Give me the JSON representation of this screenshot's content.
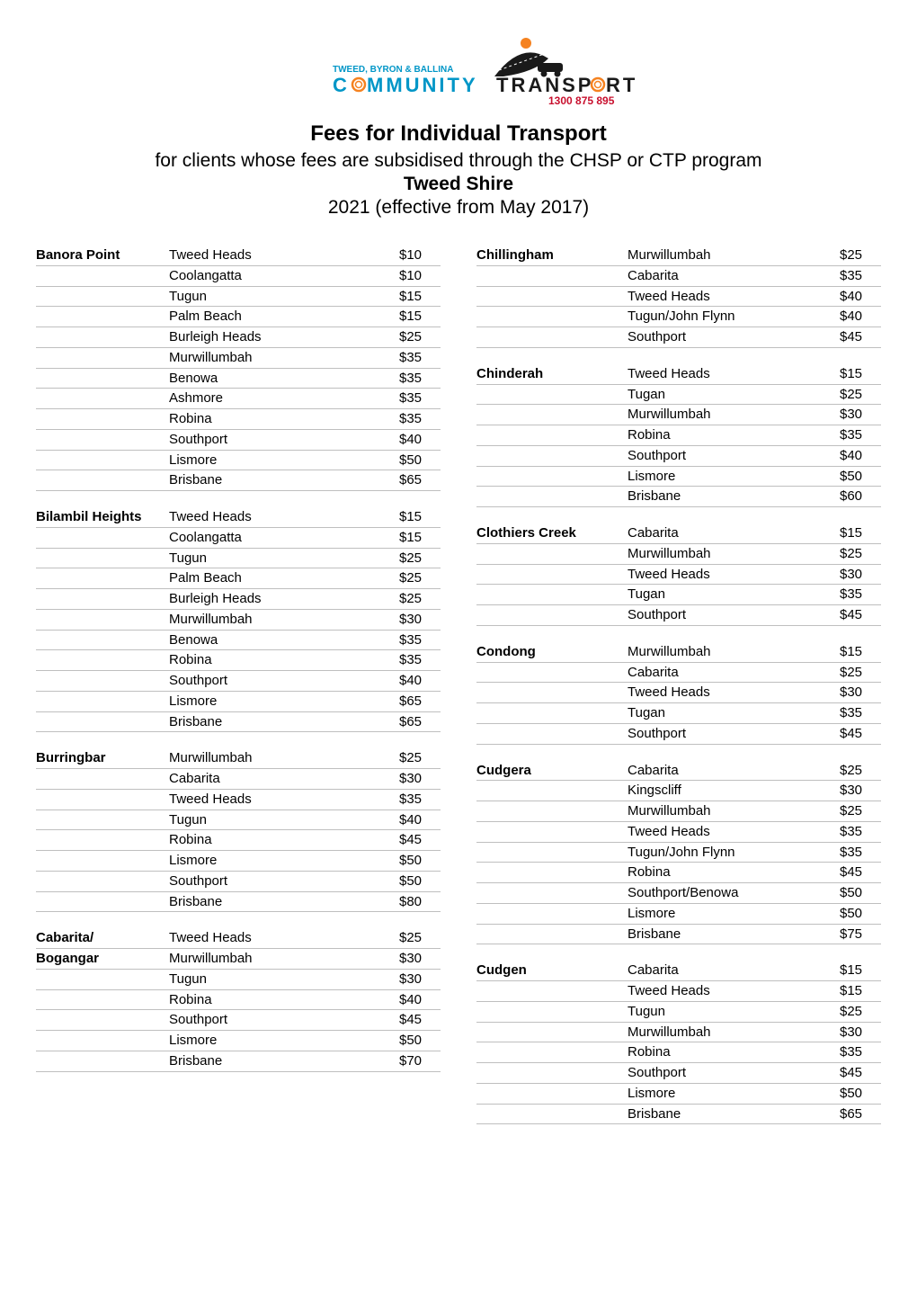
{
  "logo": {
    "line1_prefix": "TWEED, BYRON & BALLINA",
    "line2_text": "COMMUNITY TRANSPORT",
    "phone": "1300 875 895",
    "accent_color": "#0096c7",
    "orange_color": "#f58220",
    "red_color": "#c8102e"
  },
  "header": {
    "main_title": "Fees for Individual Transport",
    "subtitle": "for clients whose fees are subsidised through the CHSP or CTP program",
    "shire": "Tweed Shire",
    "date_line": "2021 (effective from May 2017)"
  },
  "styling": {
    "background": "#ffffff",
    "text_color": "#000000",
    "border_color": "#bfbfbf",
    "body_fontsize": 15,
    "title_fontsize": 24,
    "subtitle_fontsize": 21
  },
  "left_column": [
    {
      "origin": "Banora Point",
      "rows": [
        {
          "dest": "Tweed Heads",
          "fare": "$10"
        },
        {
          "dest": "Coolangatta",
          "fare": "$10"
        },
        {
          "dest": "Tugun",
          "fare": "$15"
        },
        {
          "dest": "Palm Beach",
          "fare": "$15"
        },
        {
          "dest": "Burleigh Heads",
          "fare": "$25"
        },
        {
          "dest": "Murwillumbah",
          "fare": "$35"
        },
        {
          "dest": "Benowa",
          "fare": "$35"
        },
        {
          "dest": "Ashmore",
          "fare": "$35"
        },
        {
          "dest": "Robina",
          "fare": "$35"
        },
        {
          "dest": "Southport",
          "fare": "$40"
        },
        {
          "dest": "Lismore",
          "fare": "$50"
        },
        {
          "dest": "Brisbane",
          "fare": "$65"
        }
      ]
    },
    {
      "origin": "Bilambil Heights",
      "rows": [
        {
          "dest": "Tweed Heads",
          "fare": "$15"
        },
        {
          "dest": "Coolangatta",
          "fare": "$15"
        },
        {
          "dest": "Tugun",
          "fare": "$25"
        },
        {
          "dest": "Palm Beach",
          "fare": "$25"
        },
        {
          "dest": "Burleigh Heads",
          "fare": "$25"
        },
        {
          "dest": "Murwillumbah",
          "fare": "$30"
        },
        {
          "dest": "Benowa",
          "fare": "$35"
        },
        {
          "dest": "Robina",
          "fare": "$35"
        },
        {
          "dest": "Southport",
          "fare": "$40"
        },
        {
          "dest": "Lismore",
          "fare": "$65"
        },
        {
          "dest": "Brisbane",
          "fare": "$65"
        }
      ]
    },
    {
      "origin": "Burringbar",
      "rows": [
        {
          "dest": "Murwillumbah",
          "fare": "$25"
        },
        {
          "dest": "Cabarita",
          "fare": "$30"
        },
        {
          "dest": "Tweed Heads",
          "fare": "$35"
        },
        {
          "dest": "Tugun",
          "fare": "$40"
        },
        {
          "dest": "Robina",
          "fare": "$45"
        },
        {
          "dest": "Lismore",
          "fare": "$50"
        },
        {
          "dest": "Southport",
          "fare": "$50"
        },
        {
          "dest": "Brisbane",
          "fare": "$80"
        }
      ]
    },
    {
      "origin": "Cabarita/",
      "origin2": "Bogangar",
      "rows": [
        {
          "dest": "Tweed Heads",
          "fare": "$25"
        },
        {
          "dest": "Murwillumbah",
          "fare": "$30"
        },
        {
          "dest": "Tugun",
          "fare": "$30"
        },
        {
          "dest": "Robina",
          "fare": "$40"
        },
        {
          "dest": "Southport",
          "fare": "$45"
        },
        {
          "dest": "Lismore",
          "fare": "$50"
        },
        {
          "dest": "Brisbane",
          "fare": "$70"
        }
      ]
    }
  ],
  "right_column": [
    {
      "origin": "Chillingham",
      "rows": [
        {
          "dest": "Murwillumbah",
          "fare": "$25"
        },
        {
          "dest": "Cabarita",
          "fare": "$35"
        },
        {
          "dest": "Tweed Heads",
          "fare": "$40"
        },
        {
          "dest": "Tugun/John Flynn",
          "fare": "$40"
        },
        {
          "dest": "Southport",
          "fare": "$45"
        }
      ]
    },
    {
      "origin": "Chinderah",
      "rows": [
        {
          "dest": "Tweed Heads",
          "fare": "$15"
        },
        {
          "dest": "Tugan",
          "fare": "$25"
        },
        {
          "dest": "Murwillumbah",
          "fare": "$30"
        },
        {
          "dest": "Robina",
          "fare": "$35"
        },
        {
          "dest": "Southport",
          "fare": "$40"
        },
        {
          "dest": "Lismore",
          "fare": "$50"
        },
        {
          "dest": "Brisbane",
          "fare": "$60"
        }
      ]
    },
    {
      "origin": "Clothiers Creek",
      "rows": [
        {
          "dest": "Cabarita",
          "fare": "$15"
        },
        {
          "dest": "Murwillumbah",
          "fare": "$25"
        },
        {
          "dest": "Tweed Heads",
          "fare": "$30"
        },
        {
          "dest": "Tugan",
          "fare": "$35"
        },
        {
          "dest": "Southport",
          "fare": "$45"
        }
      ]
    },
    {
      "origin": "Condong",
      "rows": [
        {
          "dest": "Murwillumbah",
          "fare": "$15"
        },
        {
          "dest": "Cabarita",
          "fare": "$25"
        },
        {
          "dest": "Tweed Heads",
          "fare": "$30"
        },
        {
          "dest": "Tugan",
          "fare": "$35"
        },
        {
          "dest": "Southport",
          "fare": "$45"
        }
      ]
    },
    {
      "origin": "Cudgera",
      "rows": [
        {
          "dest": "Cabarita",
          "fare": "$25"
        },
        {
          "dest": "Kingscliff",
          "fare": "$30"
        },
        {
          "dest": "Murwillumbah",
          "fare": "$25"
        },
        {
          "dest": "Tweed Heads",
          "fare": "$35"
        },
        {
          "dest": "Tugun/John Flynn",
          "fare": "$35"
        },
        {
          "dest": "Robina",
          "fare": "$45"
        },
        {
          "dest": "Southport/Benowa",
          "fare": "$50"
        },
        {
          "dest": "Lismore",
          "fare": "$50"
        },
        {
          "dest": "Brisbane",
          "fare": "$75"
        }
      ]
    },
    {
      "origin": "Cudgen",
      "rows": [
        {
          "dest": "Cabarita",
          "fare": "$15"
        },
        {
          "dest": "Tweed Heads",
          "fare": "$15"
        },
        {
          "dest": "Tugun",
          "fare": "$25"
        },
        {
          "dest": "Murwillumbah",
          "fare": "$30"
        },
        {
          "dest": "Robina",
          "fare": "$35"
        },
        {
          "dest": "Southport",
          "fare": "$45"
        },
        {
          "dest": "Lismore",
          "fare": "$50"
        },
        {
          "dest": "Brisbane",
          "fare": "$65"
        }
      ]
    }
  ]
}
